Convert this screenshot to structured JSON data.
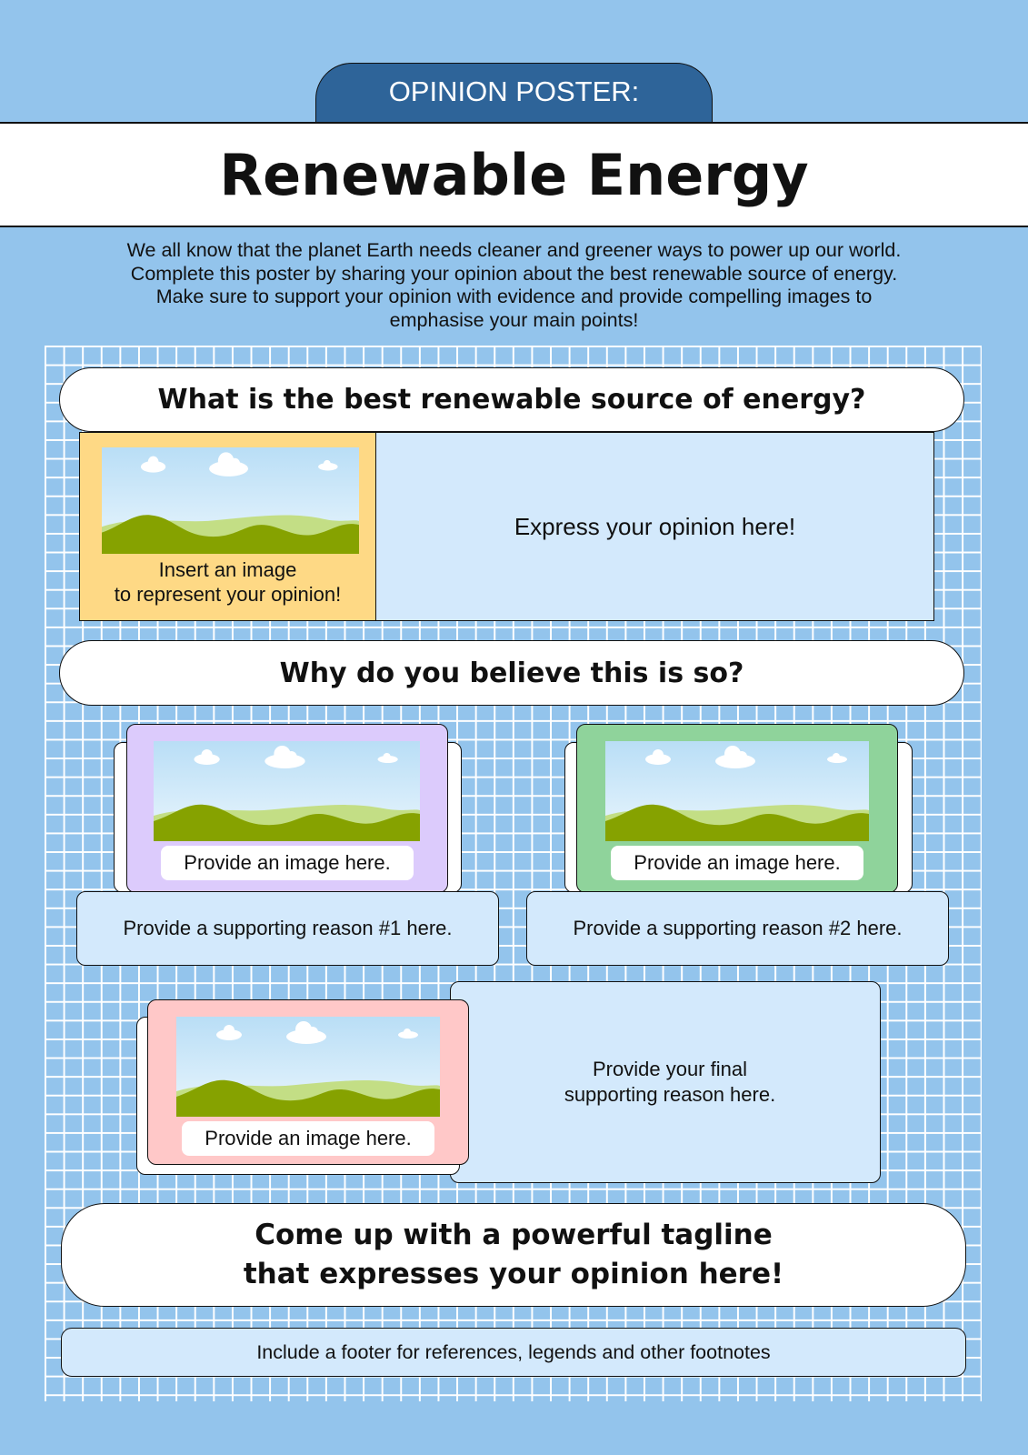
{
  "header": {
    "label": "OPINION POSTER:",
    "title": "Renewable Energy"
  },
  "intro": [
    "We all know that the planet Earth needs cleaner and greener ways to power up our world.",
    "Complete this poster by sharing your opinion about the best renewable source of energy.",
    "Make sure to support your opinion with evidence and provide compelling images to",
    "emphasise your main points!"
  ],
  "question": "What is the best renewable source of energy?",
  "opinion": {
    "image_caption": [
      "Insert an image",
      "to represent your opinion!"
    ],
    "text": "Express your opinion here!"
  },
  "why": "Why do you believe this is so?",
  "reasons": [
    {
      "image_caption": "Provide an image here.",
      "text": "Provide a supporting reason #1 here."
    },
    {
      "image_caption": "Provide an image here.",
      "text": "Provide a supporting reason #2 here."
    }
  ],
  "final": {
    "image_caption": "Provide an image here.",
    "text": [
      "Provide your final",
      "supporting reason here."
    ]
  },
  "tagline": [
    "Come up with a powerful tagline",
    "that expresses your opinion here!"
  ],
  "footer": "Include a footer for references, legends and other footnotes"
}
